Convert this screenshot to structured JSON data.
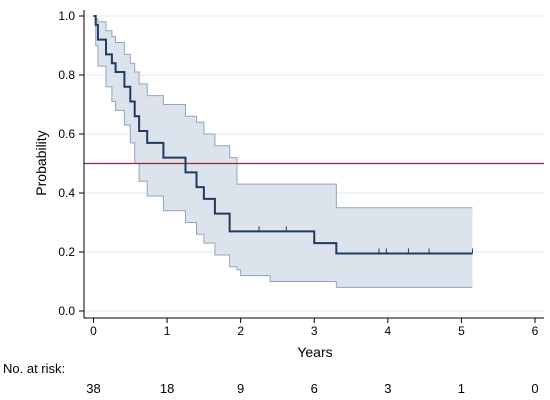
{
  "chart_data": {
    "type": "line",
    "xlabel": "Years",
    "ylabel": "Probability",
    "xlim": [
      0,
      6
    ],
    "ylim": [
      0,
      1
    ],
    "x_ticks": [
      "0",
      "1",
      "2",
      "3",
      "4",
      "5",
      "6"
    ],
    "y_ticks": [
      "0.0",
      "0.2",
      "0.4",
      "0.6",
      "0.8",
      "1.0"
    ],
    "grid": "horizontal",
    "reference_line": {
      "y": 0.5,
      "color": "#9b2335"
    },
    "series": [
      {
        "kind": "survival-step",
        "color": "#1f3b63",
        "points": [
          [
            0,
            1.0
          ],
          [
            0.03,
            0.97
          ],
          [
            0.06,
            0.92
          ],
          [
            0.17,
            0.87
          ],
          [
            0.25,
            0.84
          ],
          [
            0.3,
            0.81
          ],
          [
            0.42,
            0.76
          ],
          [
            0.5,
            0.71
          ],
          [
            0.56,
            0.66
          ],
          [
            0.62,
            0.61
          ],
          [
            0.73,
            0.57
          ],
          [
            0.95,
            0.52
          ],
          [
            1.25,
            0.47
          ],
          [
            1.4,
            0.42
          ],
          [
            1.5,
            0.38
          ],
          [
            1.65,
            0.33
          ],
          [
            1.85,
            0.27
          ],
          [
            3.0,
            0.23
          ],
          [
            3.3,
            0.195
          ],
          [
            5.15,
            0.195
          ]
        ],
        "censor_times": [
          2.25,
          2.62,
          3.88,
          3.98,
          4.28,
          4.56,
          5.15
        ]
      }
    ],
    "confidence_band": {
      "color": "#dde3ec",
      "edge_color": "#8fa5c0",
      "upper": [
        [
          0,
          1.0
        ],
        [
          0.03,
          0.99
        ],
        [
          0.06,
          0.98
        ],
        [
          0.17,
          0.95
        ],
        [
          0.25,
          0.93
        ],
        [
          0.3,
          0.91
        ],
        [
          0.42,
          0.87
        ],
        [
          0.5,
          0.84
        ],
        [
          0.56,
          0.81
        ],
        [
          0.62,
          0.77
        ],
        [
          0.73,
          0.73
        ],
        [
          0.95,
          0.7
        ],
        [
          1.25,
          0.66
        ],
        [
          1.4,
          0.64
        ],
        [
          1.5,
          0.6
        ],
        [
          1.65,
          0.56
        ],
        [
          1.85,
          0.52
        ],
        [
          1.95,
          0.43
        ],
        [
          3.0,
          0.43
        ],
        [
          3.3,
          0.35
        ],
        [
          5.15,
          0.35
        ]
      ],
      "lower": [
        [
          0,
          1.0
        ],
        [
          0.03,
          0.9
        ],
        [
          0.06,
          0.83
        ],
        [
          0.17,
          0.76
        ],
        [
          0.25,
          0.71
        ],
        [
          0.3,
          0.68
        ],
        [
          0.42,
          0.63
        ],
        [
          0.5,
          0.57
        ],
        [
          0.56,
          0.5
        ],
        [
          0.62,
          0.44
        ],
        [
          0.73,
          0.39
        ],
        [
          0.95,
          0.34
        ],
        [
          1.25,
          0.3
        ],
        [
          1.4,
          0.26
        ],
        [
          1.5,
          0.23
        ],
        [
          1.65,
          0.19
        ],
        [
          1.85,
          0.15
        ],
        [
          1.95,
          0.14
        ],
        [
          2.0,
          0.12
        ],
        [
          2.4,
          0.1
        ],
        [
          3.0,
          0.1
        ],
        [
          3.3,
          0.08
        ],
        [
          5.15,
          0.08
        ]
      ]
    }
  },
  "risk_table": {
    "label": "No. at risk:",
    "counts": [
      {
        "x": 0,
        "value": "38"
      },
      {
        "x": 1,
        "value": "18"
      },
      {
        "x": 2,
        "value": "9"
      },
      {
        "x": 3,
        "value": "6"
      },
      {
        "x": 4,
        "value": "3"
      },
      {
        "x": 5,
        "value": "1"
      },
      {
        "x": 6,
        "value": "0"
      }
    ]
  }
}
